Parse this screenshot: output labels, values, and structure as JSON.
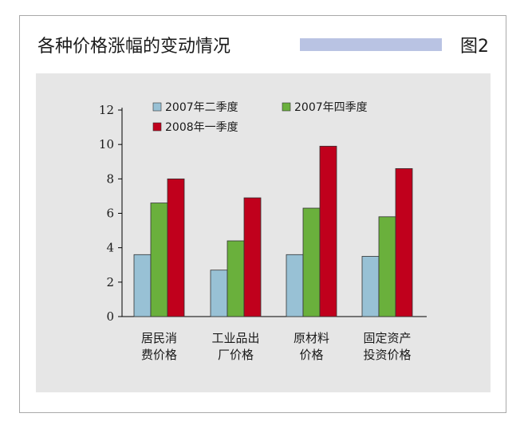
{
  "header": {
    "title": "各种价格涨幅的变动情况",
    "figure_label": "图2"
  },
  "colors": {
    "series": [
      "#98c1d5",
      "#6ab03c",
      "#c0001c"
    ],
    "deco_bar": "#b9c3e3",
    "panel": "#e6e6e6"
  },
  "chart_data": {
    "type": "bar",
    "categories": [
      [
        "居民消",
        "费价格"
      ],
      [
        "工业品出",
        "厂价格"
      ],
      [
        "原材料",
        "价格"
      ],
      [
        "固定资产",
        "投资价格"
      ]
    ],
    "series": [
      {
        "name": "2007年二季度",
        "values": [
          3.6,
          2.7,
          3.6,
          3.5
        ]
      },
      {
        "name": "2007年四季度",
        "values": [
          6.6,
          4.4,
          6.3,
          5.8
        ]
      },
      {
        "name": "2008年一季度",
        "values": [
          8.0,
          6.9,
          9.9,
          8.6
        ]
      }
    ],
    "yticks": [
      0,
      2,
      4,
      6,
      8,
      10,
      12
    ],
    "ylim": [
      0,
      12
    ],
    "title": "",
    "xlabel": "",
    "ylabel": "",
    "grid": false,
    "legend_position": "top-left"
  }
}
